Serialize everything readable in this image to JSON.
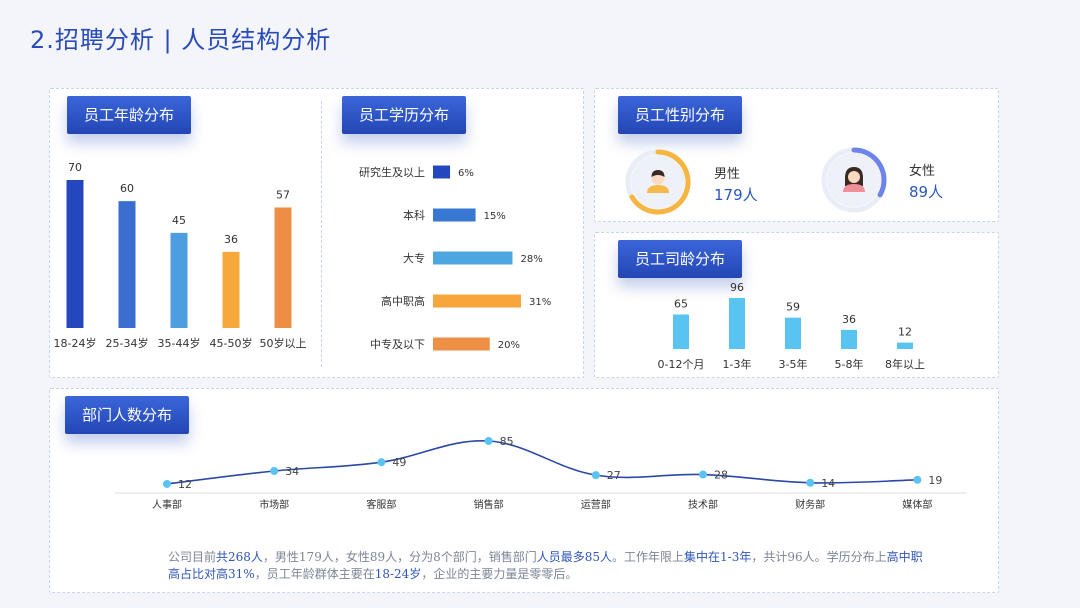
{
  "page": {
    "title": "2.招聘分析 | 人员结构分析"
  },
  "sections": {
    "age": "员工年龄分布",
    "education": "员工学历分布",
    "gender": "员工性别分布",
    "tenure": "员工司龄分布",
    "department": "部门人数分布"
  },
  "gender": {
    "male": {
      "label": "男性",
      "value": "179人",
      "share": 0.667
    },
    "female": {
      "label": "女性",
      "value": "89人",
      "share": 0.332
    }
  },
  "summary": [
    {
      "text": "公司目前",
      "hl": false
    },
    {
      "text": "共268人",
      "hl": true
    },
    {
      "text": "，男性179人，女性89人，分为8个部门，销售部门",
      "hl": false
    },
    {
      "text": "人员最多85人",
      "hl": true
    },
    {
      "text": "。工作年限上",
      "hl": false
    },
    {
      "text": "集中在1-3年",
      "hl": true
    },
    {
      "text": "，共计96人。学历分布上",
      "hl": false
    },
    {
      "text": "高中职高占比对高31%",
      "hl": true
    },
    {
      "text": "，员工年龄群体主要在",
      "hl": false
    },
    {
      "text": "18-24岁",
      "hl": true
    },
    {
      "text": "，企业的主要力量是零零后。",
      "hl": false
    }
  ],
  "colors": {
    "accent": "#2a4bb8",
    "age_bars": [
      "#2547bd",
      "#3a6fd0",
      "#4d9ee0",
      "#f6a83a",
      "#ee8d44"
    ],
    "edu_bars": [
      "#2547bd",
      "#3978d2",
      "#4ea6e0",
      "#f6a63a",
      "#ee9046"
    ],
    "tenure_bar": "#59c4f1",
    "line": "#2b48a6",
    "point": "#5bc3f2",
    "male_ring": "#f6b441",
    "female_ring": "#6d84ec"
  },
  "chart_data": [
    {
      "id": "age",
      "type": "bar",
      "categories": [
        "18-24岁",
        "25-34岁",
        "35-44岁",
        "45-50岁",
        "50岁以上"
      ],
      "values": [
        70,
        60,
        45,
        36,
        57
      ],
      "ylim": [
        0,
        70
      ]
    },
    {
      "id": "education",
      "type": "bar",
      "orientation": "horizontal",
      "categories": [
        "研究生及以上",
        "本科",
        "大专",
        "高中职高",
        "中专及以下"
      ],
      "values": [
        6,
        15,
        28,
        31,
        20
      ],
      "value_labels": [
        "6%",
        "15%",
        "28%",
        "31%",
        "20%"
      ],
      "xlim": [
        0,
        31
      ]
    },
    {
      "id": "tenure",
      "type": "bar",
      "categories": [
        "0-12个月",
        "1-3年",
        "3-5年",
        "5-8年",
        "8年以上"
      ],
      "values": [
        65,
        96,
        59,
        36,
        12
      ],
      "ylim": [
        0,
        96
      ]
    },
    {
      "id": "department",
      "type": "line",
      "smooth": true,
      "categories": [
        "人事部",
        "市场部",
        "客服部",
        "销售部",
        "运营部",
        "技术部",
        "财务部",
        "媒体部"
      ],
      "values": [
        12,
        34,
        49,
        85,
        27,
        28,
        14,
        19
      ],
      "ylim": [
        0,
        85
      ]
    }
  ]
}
